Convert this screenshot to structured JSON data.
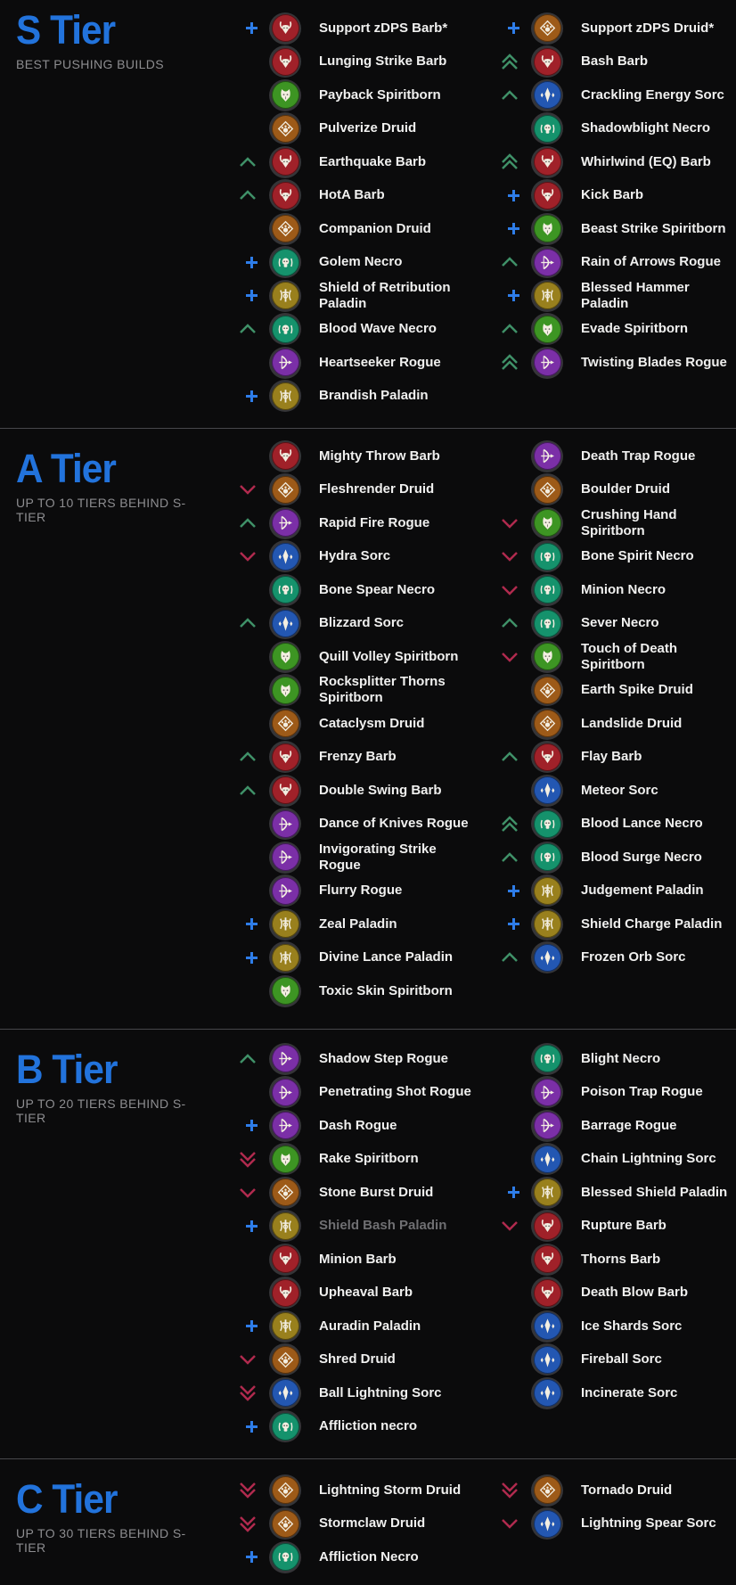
{
  "page": {
    "background": "#0b0b0c",
    "divider_color": "#47474b",
    "title_color": "#2273dc",
    "subtitle_color": "#8d8d90",
    "text_color": "#f0f0ef",
    "dimmed_text_color": "#6f6f72"
  },
  "indicator_colors": {
    "up": "#3f9168",
    "down": "#b02a4e",
    "plus": "#2e7de9"
  },
  "class_colors": {
    "barbarian": "#a02129",
    "druid": "#9d5a18",
    "spiritborn": "#3d9523",
    "necromancer": "#15926c",
    "sorcerer": "#2357b2",
    "rogue": "#7b2fa7",
    "paladin": "#99801d"
  },
  "sections": [
    {
      "id": "s-tier",
      "title": "S Tier",
      "subtitle": "BEST PUSHING BUILDS",
      "columns": [
        [
          {
            "label": "Support zDPS Barb*",
            "class": "barbarian",
            "indicator": "plus"
          },
          {
            "label": "Lunging Strike Barb",
            "class": "barbarian",
            "indicator": "none"
          },
          {
            "label": "Payback Spiritborn",
            "class": "spiritborn",
            "indicator": "none"
          },
          {
            "label": "Pulverize Druid",
            "class": "druid",
            "indicator": "none"
          },
          {
            "label": "Earthquake Barb",
            "class": "barbarian",
            "indicator": "up"
          },
          {
            "label": "HotA Barb",
            "class": "barbarian",
            "indicator": "up"
          },
          {
            "label": "Companion Druid",
            "class": "druid",
            "indicator": "none"
          },
          {
            "label": "Golem Necro",
            "class": "necromancer",
            "indicator": "plus"
          },
          {
            "label": "Shield of Retribution Paladin",
            "class": "paladin",
            "indicator": "plus"
          },
          {
            "label": "Blood Wave Necro",
            "class": "necromancer",
            "indicator": "up"
          },
          {
            "label": "Heartseeker Rogue",
            "class": "rogue",
            "indicator": "none"
          },
          {
            "label": "Brandish Paladin",
            "class": "paladin",
            "indicator": "plus"
          }
        ],
        [
          {
            "label": "Support zDPS Druid*",
            "class": "druid",
            "indicator": "plus"
          },
          {
            "label": "Bash Barb",
            "class": "barbarian",
            "indicator": "up2"
          },
          {
            "label": "Crackling Energy Sorc",
            "class": "sorcerer",
            "indicator": "up"
          },
          {
            "label": "Shadowblight Necro",
            "class": "necromancer",
            "indicator": "none"
          },
          {
            "label": "Whirlwind (EQ) Barb",
            "class": "barbarian",
            "indicator": "up2"
          },
          {
            "label": "Kick Barb",
            "class": "barbarian",
            "indicator": "plus"
          },
          {
            "label": "Beast Strike Spiritborn",
            "class": "spiritborn",
            "indicator": "plus"
          },
          {
            "label": "Rain of Arrows Rogue",
            "class": "rogue",
            "indicator": "up"
          },
          {
            "label": "Blessed Hammer Paladin",
            "class": "paladin",
            "indicator": "plus"
          },
          {
            "label": "Evade Spiritborn",
            "class": "spiritborn",
            "indicator": "up"
          },
          {
            "label": "Twisting Blades Rogue",
            "class": "rogue",
            "indicator": "up2"
          }
        ]
      ]
    },
    {
      "id": "a-tier",
      "title": "A Tier",
      "subtitle": "UP TO 10 TIERS BEHIND S-TIER",
      "columns": [
        [
          {
            "label": "Mighty Throw Barb",
            "class": "barbarian",
            "indicator": "none"
          },
          {
            "label": "Fleshrender Druid",
            "class": "druid",
            "indicator": "down"
          },
          {
            "label": "Rapid Fire Rogue",
            "class": "rogue",
            "indicator": "up"
          },
          {
            "label": "Hydra Sorc",
            "class": "sorcerer",
            "indicator": "down"
          },
          {
            "label": "Bone Spear Necro",
            "class": "necromancer",
            "indicator": "none"
          },
          {
            "label": "Blizzard Sorc",
            "class": "sorcerer",
            "indicator": "up"
          },
          {
            "label": "Quill Volley Spiritborn",
            "class": "spiritborn",
            "indicator": "none"
          },
          {
            "label": "Rocksplitter Thorns Spiritborn",
            "class": "spiritborn",
            "indicator": "none"
          },
          {
            "label": "Cataclysm Druid",
            "class": "druid",
            "indicator": "none"
          },
          {
            "label": "Frenzy Barb",
            "class": "barbarian",
            "indicator": "up"
          },
          {
            "label": "Double Swing Barb",
            "class": "barbarian",
            "indicator": "up"
          },
          {
            "label": "Dance of Knives Rogue",
            "class": "rogue",
            "indicator": "none"
          },
          {
            "label": "Invigorating Strike Rogue",
            "class": "rogue",
            "indicator": "none"
          },
          {
            "label": "Flurry Rogue",
            "class": "rogue",
            "indicator": "none"
          },
          {
            "label": "Zeal Paladin",
            "class": "paladin",
            "indicator": "plus"
          },
          {
            "label": "Divine Lance Paladin",
            "class": "paladin",
            "indicator": "plus"
          },
          {
            "label": "Toxic Skin Spiritborn",
            "class": "spiritborn",
            "indicator": "none"
          }
        ],
        [
          {
            "label": "Death Trap Rogue",
            "class": "rogue",
            "indicator": "none"
          },
          {
            "label": "Boulder Druid",
            "class": "druid",
            "indicator": "none"
          },
          {
            "label": "Crushing Hand Spiritborn",
            "class": "spiritborn",
            "indicator": "down"
          },
          {
            "label": "Bone Spirit Necro",
            "class": "necromancer",
            "indicator": "down"
          },
          {
            "label": "Minion Necro",
            "class": "necromancer",
            "indicator": "down"
          },
          {
            "label": "Sever Necro",
            "class": "necromancer",
            "indicator": "up"
          },
          {
            "label": "Touch of Death Spiritborn",
            "class": "spiritborn",
            "indicator": "down"
          },
          {
            "label": "Earth Spike Druid",
            "class": "druid",
            "indicator": "none"
          },
          {
            "label": "Landslide Druid",
            "class": "druid",
            "indicator": "none"
          },
          {
            "label": "Flay Barb",
            "class": "barbarian",
            "indicator": "up"
          },
          {
            "label": "Meteor Sorc",
            "class": "sorcerer",
            "indicator": "none"
          },
          {
            "label": "Blood Lance Necro",
            "class": "necromancer",
            "indicator": "up2"
          },
          {
            "label": "Blood Surge Necro",
            "class": "necromancer",
            "indicator": "up"
          },
          {
            "label": "Judgement Paladin",
            "class": "paladin",
            "indicator": "plus"
          },
          {
            "label": "Shield Charge Paladin",
            "class": "paladin",
            "indicator": "plus"
          },
          {
            "label": "Frozen Orb Sorc",
            "class": "sorcerer",
            "indicator": "up"
          }
        ]
      ]
    },
    {
      "id": "b-tier",
      "title": "B Tier",
      "subtitle": "UP TO 20 TIERS BEHIND S-TIER",
      "columns": [
        [
          {
            "label": "Shadow Step Rogue",
            "class": "rogue",
            "indicator": "up"
          },
          {
            "label": "Penetrating Shot Rogue",
            "class": "rogue",
            "indicator": "none"
          },
          {
            "label": "Dash Rogue",
            "class": "rogue",
            "indicator": "plus"
          },
          {
            "label": "Rake Spiritborn",
            "class": "spiritborn",
            "indicator": "down2"
          },
          {
            "label": "Stone Burst Druid",
            "class": "druid",
            "indicator": "down"
          },
          {
            "label": "Shield Bash Paladin",
            "class": "paladin",
            "indicator": "plus",
            "dimmed": true
          },
          {
            "label": "Minion Barb",
            "class": "barbarian",
            "indicator": "none"
          },
          {
            "label": "Upheaval Barb",
            "class": "barbarian",
            "indicator": "none"
          },
          {
            "label": "Auradin Paladin",
            "class": "paladin",
            "indicator": "plus"
          },
          {
            "label": "Shred Druid",
            "class": "druid",
            "indicator": "down"
          },
          {
            "label": "Ball Lightning Sorc",
            "class": "sorcerer",
            "indicator": "down2"
          },
          {
            "label": "Affliction necro",
            "class": "necromancer",
            "indicator": "plus"
          }
        ],
        [
          {
            "label": "Blight Necro",
            "class": "necromancer",
            "indicator": "none"
          },
          {
            "label": "Poison Trap Rogue",
            "class": "rogue",
            "indicator": "none"
          },
          {
            "label": "Barrage Rogue",
            "class": "rogue",
            "indicator": "none"
          },
          {
            "label": "Chain Lightning Sorc",
            "class": "sorcerer",
            "indicator": "none"
          },
          {
            "label": "Blessed Shield Paladin",
            "class": "paladin",
            "indicator": "plus"
          },
          {
            "label": "Rupture Barb",
            "class": "barbarian",
            "indicator": "down"
          },
          {
            "label": "Thorns Barb",
            "class": "barbarian",
            "indicator": "none"
          },
          {
            "label": "Death Blow Barb",
            "class": "barbarian",
            "indicator": "none"
          },
          {
            "label": "Ice Shards Sorc",
            "class": "sorcerer",
            "indicator": "none"
          },
          {
            "label": "Fireball Sorc",
            "class": "sorcerer",
            "indicator": "none"
          },
          {
            "label": "Incinerate Sorc",
            "class": "sorcerer",
            "indicator": "none"
          }
        ]
      ]
    },
    {
      "id": "c-tier",
      "title": "C Tier",
      "subtitle": "UP TO 30 TIERS BEHIND S-TIER",
      "columns": [
        [
          {
            "label": "Lightning Storm Druid",
            "class": "druid",
            "indicator": "down2"
          },
          {
            "label": "Stormclaw Druid",
            "class": "druid",
            "indicator": "down2"
          },
          {
            "label": "Affliction Necro",
            "class": "necromancer",
            "indicator": "plus"
          }
        ],
        [
          {
            "label": "Tornado Druid",
            "class": "druid",
            "indicator": "down2"
          },
          {
            "label": "Lightning Spear Sorc",
            "class": "sorcerer",
            "indicator": "down"
          }
        ]
      ]
    }
  ]
}
